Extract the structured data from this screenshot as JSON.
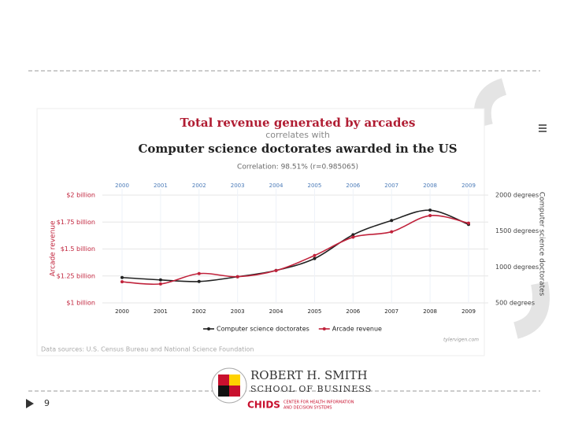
{
  "chart_data": {
    "type": "line",
    "title": "Total revenue generated by arcades",
    "connector": "correlates with",
    "subtitle": "Computer science doctorates awarded in the US",
    "annotation": "Correlation: 98.51% (r=0.985065)",
    "categories": [
      "2000",
      "2001",
      "2002",
      "2003",
      "2004",
      "2005",
      "2006",
      "2007",
      "2008",
      "2009"
    ],
    "series": [
      {
        "name": "Computer science doctorates",
        "color": "#222222",
        "axis": "y2",
        "values": [
          853,
          820,
          798,
          864,
          952,
          1117,
          1448,
          1647,
          1790,
          1592
        ]
      },
      {
        "name": "Arcade revenue",
        "color": "#c0223b",
        "values": [
          1.196,
          1.176,
          1.272,
          1.243,
          1.3,
          1.44,
          1.61,
          1.66,
          1.81,
          1.74
        ]
      }
    ],
    "ylabel": "Arcade revenue",
    "y2label": "Computer science doctorates",
    "ylim": [
      1,
      2
    ],
    "yticks": [
      {
        "value": 1,
        "label": "$1 billion"
      },
      {
        "value": 1.25,
        "label": "$1.25 billion"
      },
      {
        "value": 1.5,
        "label": "$1.5 billion"
      },
      {
        "value": 1.75,
        "label": "$1.75 billion"
      },
      {
        "value": 2,
        "label": "$2 billion"
      }
    ],
    "y2lim": [
      500,
      2000
    ],
    "y2ticks": [
      {
        "value": 500,
        "label": "500 degrees"
      },
      {
        "value": 1000,
        "label": "1000 degrees"
      },
      {
        "value": 1500,
        "label": "1500 degrees"
      },
      {
        "value": 2000,
        "label": "2000 degrees"
      }
    ],
    "grid": true,
    "legend": "bottom",
    "source": "Data sources: U.S. Census Bureau and National Science Foundation",
    "credit": "tylervigen.com"
  },
  "slide": {
    "number": "9",
    "logo_name": "ROBERT H. SMITH",
    "logo_school": "SCHOOL OF BUSINESS",
    "logo_unit": "CHIDS",
    "logo_unit_full_1": "CENTER FOR HEALTH INFORMATION",
    "logo_unit_full_2": "AND DECISION SYSTEMS"
  }
}
